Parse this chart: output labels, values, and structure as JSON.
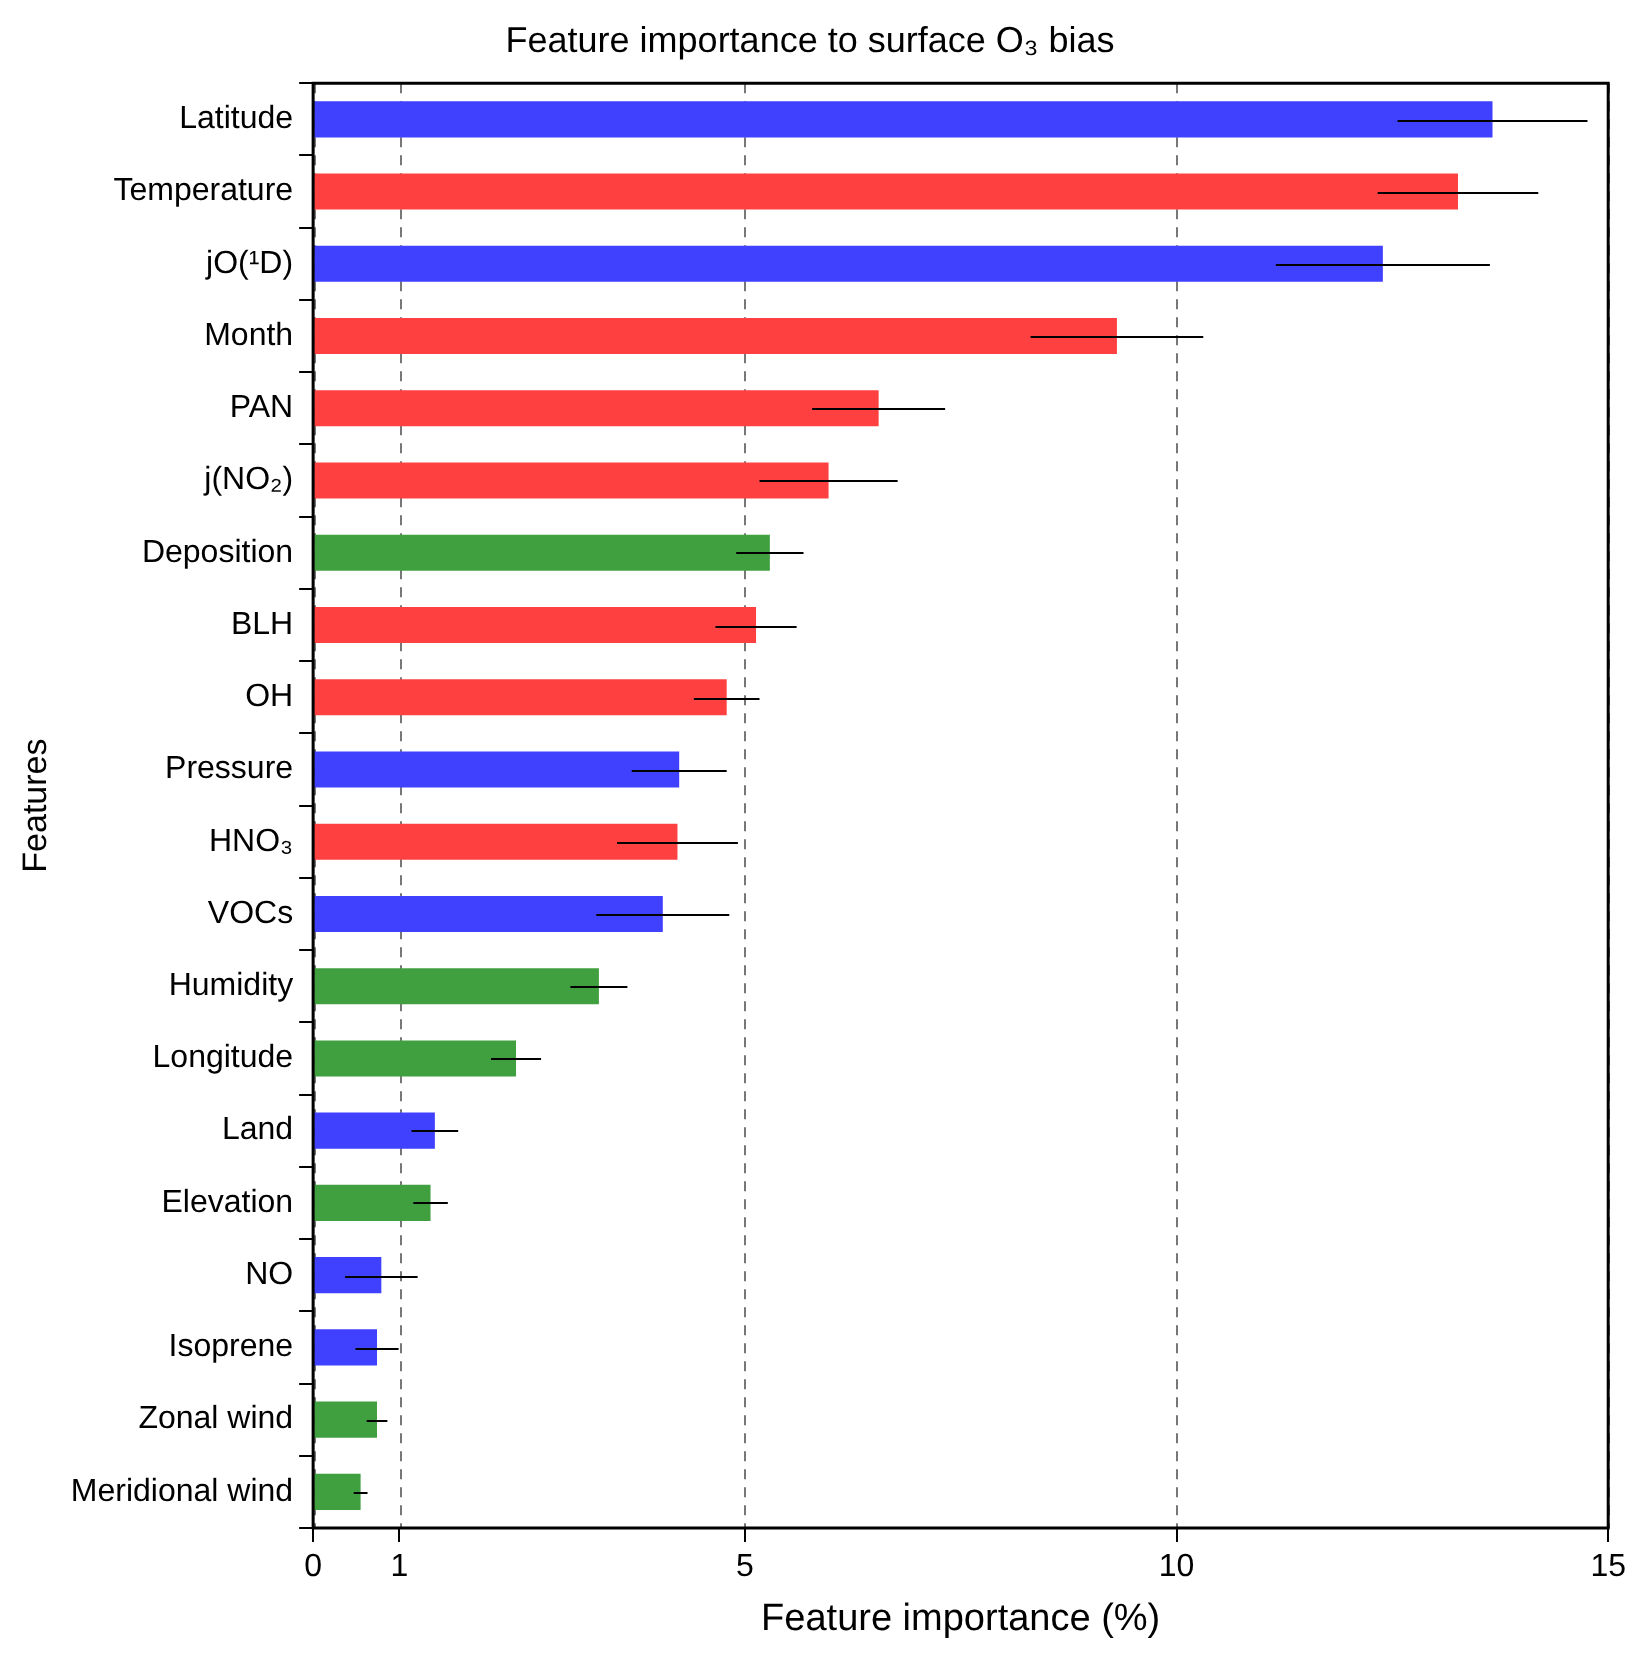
{
  "chart_data": {
    "type": "bar",
    "orientation": "horizontal",
    "title": "Feature importance to surface O₃ bias",
    "xlabel": "Feature importance (%)",
    "ylabel": "Features",
    "categories": [
      "Latitude",
      "Temperature",
      "jO(¹D)",
      "Month",
      "PAN",
      "j(NO₂)",
      "Deposition",
      "BLH",
      "OH",
      "Pressure",
      "HNO₃",
      "VOCs",
      "Humidity",
      "Longitude",
      "Land",
      "Elevation",
      "NO",
      "Isoprene",
      "Zonal wind",
      "Meridional wind"
    ],
    "values": [
      13.66,
      13.26,
      12.39,
      9.31,
      6.55,
      5.97,
      5.29,
      5.13,
      4.79,
      4.24,
      4.22,
      4.05,
      3.31,
      2.35,
      1.41,
      1.36,
      0.79,
      0.74,
      0.74,
      0.55
    ],
    "errors": [
      1.1,
      0.93,
      1.24,
      1.0,
      0.77,
      0.8,
      0.39,
      0.47,
      0.38,
      0.55,
      0.7,
      0.77,
      0.33,
      0.29,
      0.27,
      0.2,
      0.42,
      0.25,
      0.12,
      0.08
    ],
    "colors": [
      "#4040ff",
      "#ff4040",
      "#4040ff",
      "#ff4040",
      "#ff4040",
      "#ff4040",
      "#40a040",
      "#ff4040",
      "#ff4040",
      "#4040ff",
      "#ff4040",
      "#4040ff",
      "#40a040",
      "#40a040",
      "#4040ff",
      "#40a040",
      "#4040ff",
      "#4040ff",
      "#40a040",
      "#40a040"
    ],
    "xlim": [
      0,
      15
    ],
    "xticks": [
      0,
      1,
      5,
      10,
      15
    ],
    "grid": "x",
    "legend": false
  }
}
